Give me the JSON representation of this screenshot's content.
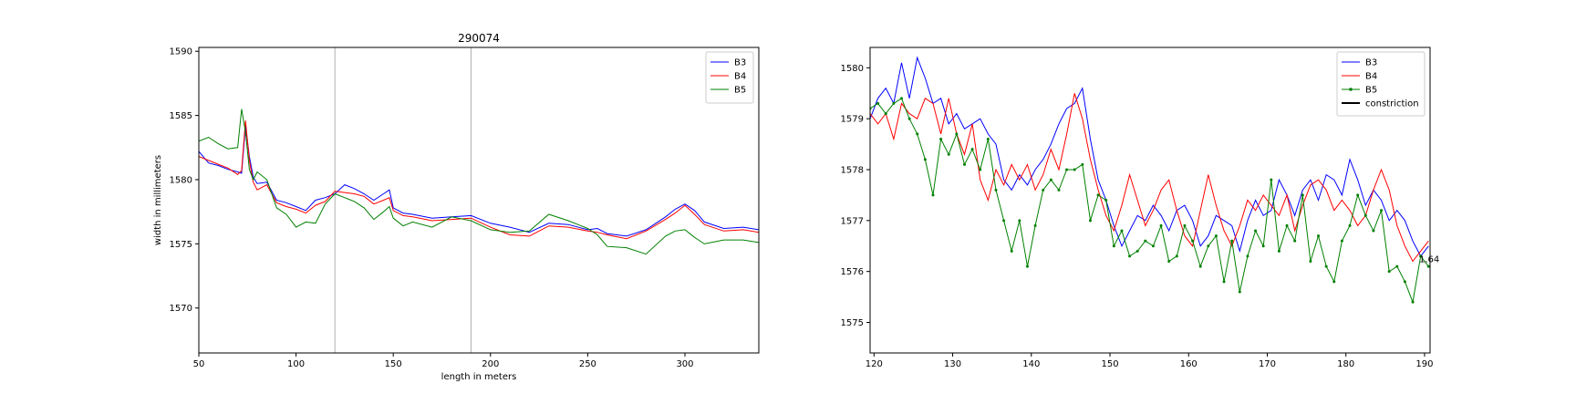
{
  "chart_data": [
    {
      "type": "line",
      "title": "290074",
      "xlabel": "length in meters",
      "ylabel": "width in millimeters",
      "xlim": [
        50,
        338
      ],
      "ylim": [
        1566.5,
        1590.3
      ],
      "xticks": [
        50,
        100,
        150,
        200,
        250,
        300
      ],
      "xtick_labels": [
        "50",
        "100",
        "150",
        "200",
        "250",
        "300"
      ],
      "yticks": [
        1570,
        1575,
        1580,
        1585,
        1590
      ],
      "ytick_labels": [
        "1570",
        "1575",
        "1580",
        "1585",
        "1590"
      ],
      "vlines": [
        120,
        190
      ],
      "vline_color": "#b0b0b0",
      "grid": false,
      "legend": "top-right",
      "series": [
        {
          "name": "B3",
          "color": "#0000ff",
          "marker": false,
          "x": [
            50,
            55,
            60,
            65,
            70,
            72,
            74,
            76,
            78,
            80,
            85,
            90,
            95,
            100,
            105,
            110,
            115,
            120,
            125,
            130,
            135,
            140,
            145,
            148,
            150,
            155,
            160,
            170,
            180,
            190,
            200,
            210,
            220,
            230,
            240,
            250,
            255,
            260,
            270,
            280,
            290,
            295,
            300,
            305,
            310,
            320,
            330,
            338
          ],
          "y": [
            1582.2,
            1581.3,
            1581.1,
            1580.8,
            1580.6,
            1580.5,
            1584.2,
            1581.8,
            1580.2,
            1579.7,
            1579.8,
            1578.4,
            1578.2,
            1577.9,
            1577.6,
            1578.4,
            1578.6,
            1578.9,
            1579.6,
            1579.3,
            1578.9,
            1578.4,
            1578.9,
            1579.2,
            1577.8,
            1577.4,
            1577.3,
            1577.0,
            1577.1,
            1577.2,
            1576.6,
            1576.3,
            1575.9,
            1576.6,
            1576.5,
            1576.1,
            1576.2,
            1575.8,
            1575.6,
            1576.1,
            1577.1,
            1577.7,
            1578.1,
            1577.6,
            1576.7,
            1576.2,
            1576.3,
            1576.1
          ]
        },
        {
          "name": "B4",
          "color": "#ff0000",
          "marker": false,
          "x": [
            50,
            55,
            60,
            65,
            70,
            72,
            74,
            76,
            78,
            80,
            85,
            90,
            95,
            100,
            105,
            110,
            115,
            120,
            125,
            130,
            135,
            140,
            145,
            148,
            150,
            155,
            160,
            170,
            180,
            190,
            200,
            210,
            220,
            230,
            240,
            250,
            255,
            260,
            270,
            280,
            290,
            295,
            300,
            305,
            310,
            320,
            330,
            338
          ],
          "y": [
            1581.8,
            1581.5,
            1581.2,
            1580.9,
            1580.4,
            1580.7,
            1584.6,
            1581.5,
            1579.8,
            1579.2,
            1579.6,
            1578.2,
            1577.9,
            1577.7,
            1577.4,
            1578.0,
            1578.3,
            1579.1,
            1579.0,
            1578.9,
            1578.7,
            1578.1,
            1578.4,
            1578.6,
            1577.6,
            1577.2,
            1577.1,
            1576.8,
            1576.9,
            1577.0,
            1576.3,
            1575.7,
            1575.6,
            1576.4,
            1576.3,
            1576.0,
            1575.9,
            1575.7,
            1575.4,
            1576.0,
            1576.9,
            1577.4,
            1578.0,
            1577.3,
            1576.5,
            1576.0,
            1576.1,
            1575.9
          ]
        },
        {
          "name": "B5",
          "color": "#008000",
          "marker": false,
          "x": [
            50,
            55,
            60,
            65,
            70,
            72,
            74,
            76,
            78,
            80,
            85,
            90,
            95,
            100,
            105,
            110,
            115,
            120,
            125,
            130,
            135,
            140,
            145,
            148,
            150,
            155,
            160,
            170,
            180,
            190,
            200,
            210,
            220,
            230,
            240,
            250,
            255,
            260,
            270,
            280,
            290,
            295,
            300,
            305,
            310,
            320,
            330,
            338
          ],
          "y": [
            1583.0,
            1583.3,
            1582.8,
            1582.4,
            1582.5,
            1585.5,
            1583.7,
            1580.8,
            1580.0,
            1580.6,
            1580.0,
            1577.8,
            1577.3,
            1576.3,
            1576.7,
            1576.6,
            1578.1,
            1578.9,
            1578.6,
            1578.3,
            1577.8,
            1576.9,
            1577.5,
            1577.9,
            1577.0,
            1576.4,
            1576.7,
            1576.3,
            1577.1,
            1576.8,
            1576.1,
            1575.9,
            1576.0,
            1577.3,
            1576.8,
            1576.2,
            1575.7,
            1574.8,
            1574.7,
            1574.2,
            1575.6,
            1576.0,
            1576.1,
            1575.5,
            1575.0,
            1575.3,
            1575.3,
            1575.1
          ]
        }
      ]
    },
    {
      "type": "line",
      "title": "",
      "xlabel": "",
      "ylabel": "",
      "xlim": [
        119.5,
        190.7
      ],
      "ylim": [
        1574.4,
        1580.4
      ],
      "xticks": [
        120,
        130,
        140,
        150,
        160,
        170,
        180,
        190
      ],
      "xtick_labels": [
        "120",
        "130",
        "140",
        "150",
        "160",
        "170",
        "180",
        "190"
      ],
      "yticks": [
        1575,
        1576,
        1577,
        1578,
        1579,
        1580
      ],
      "ytick_labels": [
        "1575",
        "1576",
        "1577",
        "1578",
        "1579",
        "1580"
      ],
      "annotations": [
        {
          "text": "1.64",
          "x": 190.7,
          "y": 1576.25
        }
      ],
      "grid": false,
      "legend": "top-right",
      "series": [
        {
          "name": "B3",
          "color": "#0000ff",
          "marker": false,
          "x": [
            119.5,
            120.5,
            121.5,
            122.5,
            123.5,
            124.5,
            125.5,
            126.5,
            127.5,
            128.5,
            129.5,
            130.5,
            131.5,
            132.5,
            133.5,
            134.5,
            135.5,
            136.5,
            137.5,
            138.5,
            139.5,
            140.5,
            141.5,
            142.5,
            143.5,
            144.5,
            145.5,
            146.5,
            147.5,
            148.5,
            149.5,
            150.5,
            151.5,
            152.5,
            153.5,
            154.5,
            155.5,
            156.5,
            157.5,
            158.5,
            159.5,
            160.5,
            161.5,
            162.5,
            163.5,
            164.5,
            165.5,
            166.5,
            167.5,
            168.5,
            169.5,
            170.5,
            171.5,
            172.5,
            173.5,
            174.5,
            175.5,
            176.5,
            177.5,
            178.5,
            179.5,
            180.5,
            181.5,
            182.5,
            183.5,
            184.5,
            185.5,
            186.5,
            187.5,
            188.5,
            189.5,
            190.5
          ],
          "y": [
            1579.0,
            1579.4,
            1579.6,
            1579.3,
            1580.1,
            1579.4,
            1580.2,
            1579.8,
            1579.3,
            1579.4,
            1578.9,
            1579.1,
            1578.8,
            1578.9,
            1579.0,
            1578.7,
            1578.5,
            1577.8,
            1577.6,
            1577.9,
            1577.7,
            1578.0,
            1578.2,
            1578.5,
            1578.9,
            1579.2,
            1579.3,
            1579.6,
            1578.6,
            1577.8,
            1577.4,
            1576.9,
            1576.5,
            1576.8,
            1577.1,
            1577.0,
            1577.3,
            1577.1,
            1576.8,
            1577.2,
            1577.3,
            1577.0,
            1576.5,
            1576.7,
            1577.1,
            1577.0,
            1576.9,
            1576.4,
            1577.0,
            1577.4,
            1577.1,
            1577.2,
            1577.8,
            1577.5,
            1577.1,
            1577.6,
            1577.8,
            1577.4,
            1577.9,
            1577.8,
            1577.5,
            1578.2,
            1577.8,
            1577.3,
            1577.6,
            1577.4,
            1577.0,
            1577.2,
            1577.0,
            1576.6,
            1576.3,
            1576.5
          ]
        },
        {
          "name": "B4",
          "color": "#ff0000",
          "marker": false,
          "x": [
            119.5,
            120.5,
            121.5,
            122.5,
            123.5,
            124.5,
            125.5,
            126.5,
            127.5,
            128.5,
            129.5,
            130.5,
            131.5,
            132.5,
            133.5,
            134.5,
            135.5,
            136.5,
            137.5,
            138.5,
            139.5,
            140.5,
            141.5,
            142.5,
            143.5,
            144.5,
            145.5,
            146.5,
            147.5,
            148.5,
            149.5,
            150.5,
            151.5,
            152.5,
            153.5,
            154.5,
            155.5,
            156.5,
            157.5,
            158.5,
            159.5,
            160.5,
            161.5,
            162.5,
            163.5,
            164.5,
            165.5,
            166.5,
            167.5,
            168.5,
            169.5,
            170.5,
            171.5,
            172.5,
            173.5,
            174.5,
            175.5,
            176.5,
            177.5,
            178.5,
            179.5,
            180.5,
            181.5,
            182.5,
            183.5,
            184.5,
            185.5,
            186.5,
            187.5,
            188.5,
            189.5,
            190.5
          ],
          "y": [
            1579.1,
            1578.9,
            1579.1,
            1578.6,
            1579.3,
            1579.1,
            1579.0,
            1579.4,
            1579.3,
            1578.7,
            1579.4,
            1578.7,
            1578.3,
            1578.9,
            1577.8,
            1577.4,
            1578.0,
            1577.7,
            1578.1,
            1577.8,
            1578.1,
            1577.6,
            1577.9,
            1578.4,
            1578.0,
            1578.7,
            1579.5,
            1579.0,
            1578.2,
            1577.6,
            1577.1,
            1576.8,
            1577.3,
            1577.9,
            1577.4,
            1576.9,
            1577.2,
            1577.6,
            1577.8,
            1577.2,
            1576.7,
            1576.5,
            1577.2,
            1577.9,
            1577.3,
            1576.8,
            1576.5,
            1576.9,
            1577.4,
            1577.2,
            1577.5,
            1577.3,
            1577.1,
            1577.5,
            1576.8,
            1577.3,
            1577.7,
            1577.8,
            1577.6,
            1577.2,
            1577.4,
            1577.2,
            1576.9,
            1577.1,
            1577.6,
            1578.0,
            1577.6,
            1576.9,
            1576.5,
            1576.2,
            1576.4,
            1576.6
          ]
        },
        {
          "name": "B5",
          "color": "#008000",
          "marker": true,
          "x": [
            119.5,
            120.5,
            121.5,
            122.5,
            123.5,
            124.5,
            125.5,
            126.5,
            127.5,
            128.5,
            129.5,
            130.5,
            131.5,
            132.5,
            133.5,
            134.5,
            135.5,
            136.5,
            137.5,
            138.5,
            139.5,
            140.5,
            141.5,
            142.5,
            143.5,
            144.5,
            145.5,
            146.5,
            147.5,
            148.5,
            149.5,
            150.5,
            151.5,
            152.5,
            153.5,
            154.5,
            155.5,
            156.5,
            157.5,
            158.5,
            159.5,
            160.5,
            161.5,
            162.5,
            163.5,
            164.5,
            165.5,
            166.5,
            167.5,
            168.5,
            169.5,
            170.5,
            171.5,
            172.5,
            173.5,
            174.5,
            175.5,
            176.5,
            177.5,
            178.5,
            179.5,
            180.5,
            181.5,
            182.5,
            183.5,
            184.5,
            185.5,
            186.5,
            187.5,
            188.5,
            189.5,
            190.5
          ],
          "y": [
            1579.2,
            1579.3,
            1579.1,
            1579.3,
            1579.4,
            1579.0,
            1578.7,
            1578.2,
            1577.5,
            1578.6,
            1578.3,
            1578.7,
            1578.1,
            1578.4,
            1578.0,
            1578.6,
            1577.6,
            1577.0,
            1576.4,
            1577.0,
            1576.1,
            1576.9,
            1577.6,
            1577.8,
            1577.6,
            1578.0,
            1578.0,
            1578.1,
            1577.0,
            1577.5,
            1577.4,
            1576.5,
            1576.8,
            1576.3,
            1576.4,
            1576.6,
            1576.5,
            1576.9,
            1576.2,
            1576.3,
            1576.9,
            1576.6,
            1576.1,
            1576.5,
            1576.7,
            1575.8,
            1576.6,
            1575.6,
            1576.3,
            1576.8,
            1576.5,
            1577.8,
            1576.4,
            1576.9,
            1576.6,
            1577.5,
            1576.2,
            1576.7,
            1576.1,
            1575.8,
            1576.6,
            1576.9,
            1577.5,
            1577.1,
            1576.8,
            1577.2,
            1576.0,
            1576.1,
            1575.8,
            1575.4,
            1576.3,
            1576.1
          ]
        }
      ],
      "legend_entries": [
        {
          "label": "B3",
          "color": "#0000ff",
          "marker": false
        },
        {
          "label": "B4",
          "color": "#ff0000",
          "marker": false
        },
        {
          "label": "B5",
          "color": "#008000",
          "marker": true
        },
        {
          "label": "constriction",
          "color": "#000000",
          "marker": false
        }
      ]
    }
  ]
}
